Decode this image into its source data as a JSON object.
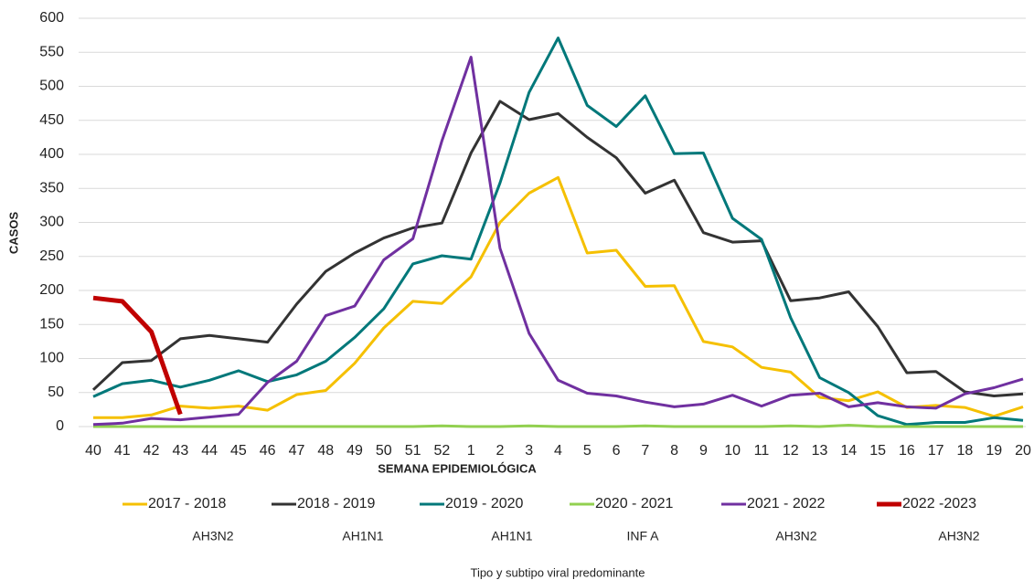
{
  "chart_data": {
    "type": "line",
    "y_label": "CASOS",
    "x_label": "SEMANA EPIDEMIOLÓGICA",
    "categories": [
      "40",
      "41",
      "42",
      "43",
      "44",
      "45",
      "46",
      "47",
      "48",
      "49",
      "50",
      "51",
      "52",
      "1",
      "2",
      "3",
      "4",
      "5",
      "6",
      "7",
      "8",
      "9",
      "10",
      "11",
      "12",
      "13",
      "14",
      "15",
      "16",
      "17",
      "18",
      "19",
      "20"
    ],
    "ylim": [
      0,
      600
    ],
    "yticks": [
      0,
      50,
      100,
      150,
      200,
      250,
      300,
      350,
      400,
      450,
      500,
      550,
      600
    ],
    "grid": true,
    "series": [
      {
        "name": "2017 - 2018",
        "color": "#f5c000",
        "values": [
          13,
          13,
          17,
          30,
          27,
          30,
          24,
          47,
          53,
          93,
          145,
          184,
          181,
          220,
          300,
          343,
          366,
          255,
          259,
          206,
          207,
          125,
          117,
          87,
          80,
          43,
          38,
          51,
          28,
          31,
          28,
          15,
          29
        ]
      },
      {
        "name": "2018 - 2019",
        "color": "#333333",
        "values": [
          54,
          94,
          97,
          129,
          134,
          129,
          124,
          180,
          228,
          255,
          277,
          292,
          299,
          402,
          478,
          451,
          460,
          425,
          395,
          343,
          362,
          285,
          271,
          273,
          185,
          189,
          198,
          147,
          79,
          81,
          51,
          45,
          48
        ]
      },
      {
        "name": "2019 - 2020",
        "color": "#00787a",
        "values": [
          44,
          63,
          68,
          58,
          68,
          82,
          66,
          76,
          96,
          131,
          173,
          239,
          251,
          246,
          358,
          491,
          571,
          472,
          441,
          486,
          401,
          402,
          306,
          275,
          160,
          72,
          50,
          16,
          3,
          6,
          6,
          13,
          9
        ]
      },
      {
        "name": "2020 - 2021",
        "color": "#92d050",
        "values": [
          0,
          0,
          0,
          0,
          0,
          0,
          0,
          0,
          0,
          0,
          0,
          0,
          1,
          0,
          0,
          1,
          0,
          0,
          0,
          1,
          0,
          0,
          0,
          0,
          1,
          0,
          2,
          0,
          0,
          0,
          0,
          0,
          0
        ]
      },
      {
        "name": "2021 - 2022",
        "color": "#7030a0",
        "values": [
          3,
          5,
          12,
          10,
          14,
          18,
          65,
          96,
          163,
          177,
          245,
          276,
          420,
          543,
          262,
          137,
          68,
          49,
          45,
          36,
          29,
          33,
          46,
          30,
          46,
          49,
          29,
          35,
          29,
          27,
          48,
          57,
          70
        ]
      },
      {
        "name": "2022 -2023",
        "color": "#c00000",
        "values": [
          189,
          184,
          139,
          18,
          null,
          null,
          null,
          null,
          null,
          null,
          null,
          null,
          null,
          null,
          null,
          null,
          null,
          null,
          null,
          null,
          null,
          null,
          null,
          null,
          null,
          null,
          null,
          null,
          null,
          null,
          null,
          null,
          null
        ]
      }
    ],
    "subtypes": [
      "AH3N2",
      "AH1N1",
      "AH1N1",
      "INF A",
      "AH3N2",
      "AH3N2"
    ],
    "subtypes_title": "Tipo y subtipo viral predominante"
  }
}
